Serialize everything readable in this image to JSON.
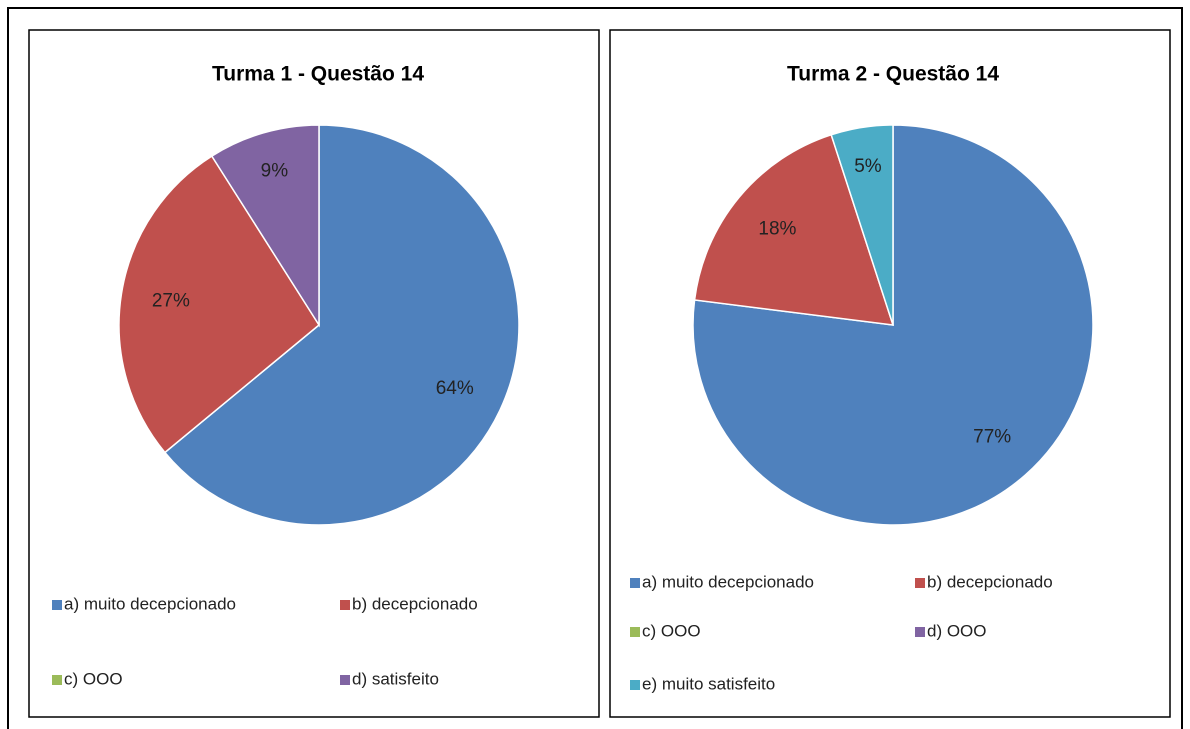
{
  "chart_data": [
    {
      "type": "pie",
      "title": "Turma 1 - Questão 14",
      "categories": [
        "a) muito decepcionado",
        "b) decepcionado",
        "c) OOO",
        "d) satisfeito"
      ],
      "values": [
        64,
        27,
        0,
        9
      ],
      "value_labels": [
        "64%",
        "27%",
        null,
        "9%"
      ],
      "colors": [
        "#4f81bd",
        "#c0504d",
        "#9bbb59",
        "#8064a2"
      ]
    },
    {
      "type": "pie",
      "title": "Turma 2 - Questão 14",
      "categories": [
        "a) muito decepcionado",
        "b) decepcionado",
        "c) OOO",
        "d) OOO",
        "e) muito satisfeito"
      ],
      "values": [
        77,
        18,
        0,
        0,
        5
      ],
      "value_labels": [
        "77%",
        "18%",
        null,
        null,
        "5%"
      ],
      "colors": [
        "#4f81bd",
        "#c0504d",
        "#9bbb59",
        "#8064a2",
        "#4bacc6"
      ]
    }
  ]
}
